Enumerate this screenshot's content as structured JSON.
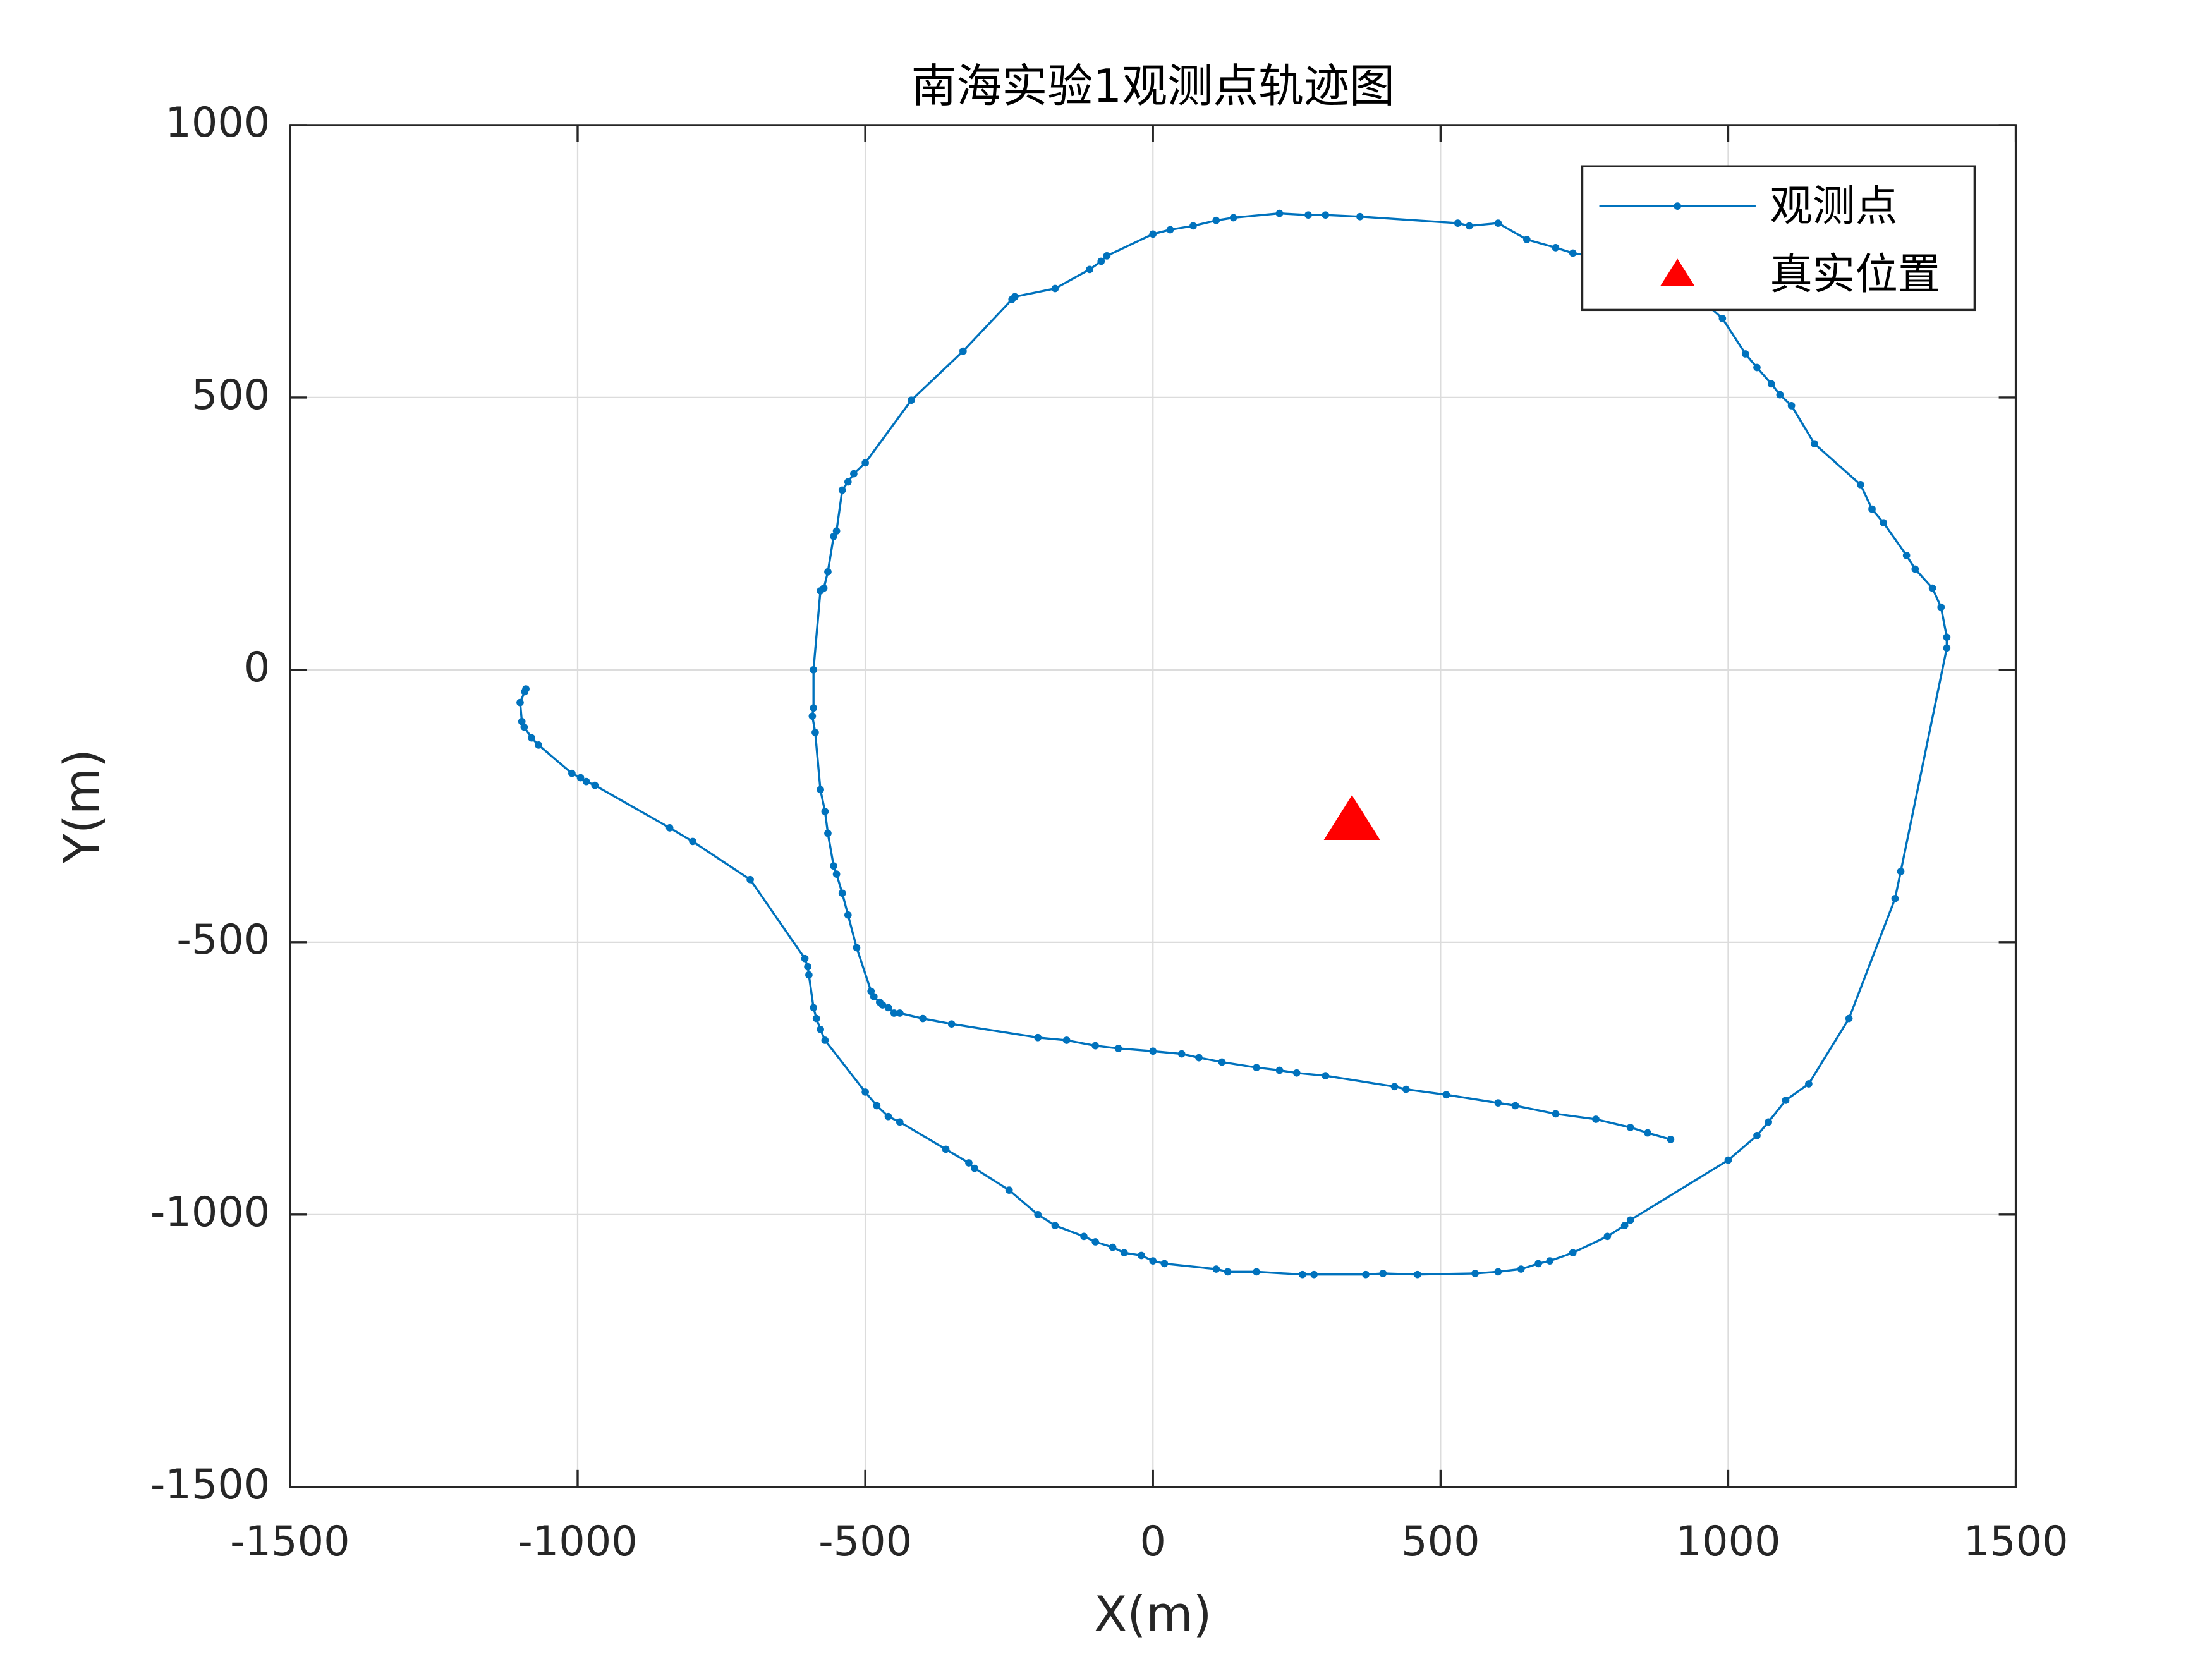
{
  "chart_data": {
    "type": "line",
    "title": "南海实验1观测点轨迹图",
    "x_label": "X(m)",
    "y_label": "Y(m)",
    "xlim": [
      -1500,
      1500
    ],
    "ylim": [
      -1500,
      1000
    ],
    "xticks": [
      -1500,
      -1000,
      -500,
      0,
      500,
      1000,
      1500
    ],
    "yticks": [
      -1500,
      -1000,
      -500,
      0,
      500,
      1000
    ],
    "grid": true,
    "legend": "northeast",
    "series": [
      {
        "name": "观测点",
        "color": "#0072bd",
        "marker": "dot",
        "x": [
          -1090,
          -1092,
          -1100,
          -1097,
          -1093,
          -1080,
          -1068,
          -1010,
          -995,
          -985,
          -970,
          -840,
          -800,
          -700,
          -605,
          -600,
          -598,
          -590,
          -585,
          -578,
          -570,
          -500,
          -480,
          -460,
          -440,
          -360,
          -320,
          -310,
          -250,
          -200,
          -170,
          -120,
          -100,
          -70,
          -50,
          -20,
          0,
          20,
          110,
          130,
          180,
          260,
          280,
          370,
          400,
          460,
          560,
          600,
          640,
          670,
          690,
          730,
          790,
          820,
          830,
          1000,
          1050,
          1070,
          1100,
          1140,
          1210,
          1290,
          1300,
          1380,
          1380,
          1370,
          1355,
          1325,
          1310,
          1270,
          1250,
          1230,
          1150,
          1110,
          1090,
          1075,
          1050,
          1030,
          990,
          900,
          850,
          730,
          700,
          650,
          600,
          550,
          530,
          360,
          300,
          270,
          220,
          140,
          110,
          70,
          30,
          0,
          -80,
          -90,
          -110,
          -170,
          -240,
          -245,
          -330,
          -420,
          -500,
          -520,
          -530,
          -540,
          -550,
          -555,
          -565,
          -572,
          -578,
          -590,
          -590,
          -592,
          -587,
          -578,
          -570,
          -565,
          -555,
          -550,
          -540,
          -530,
          -515,
          -490,
          -485,
          -475,
          -470,
          -460,
          -450,
          -440,
          -400,
          -350,
          -200,
          -150,
          -100,
          -60,
          0,
          50,
          80,
          120,
          180,
          220,
          250,
          300,
          420,
          440,
          510,
          600,
          630,
          700,
          770,
          830,
          860,
          900
        ],
        "y": [
          -35,
          -40,
          -60,
          -95,
          -105,
          -125,
          -138,
          -190,
          -198,
          -205,
          -212,
          -290,
          -315,
          -385,
          -530,
          -545,
          -560,
          -620,
          -640,
          -660,
          -680,
          -775,
          -800,
          -820,
          -830,
          -880,
          -905,
          -915,
          -955,
          -1000,
          -1020,
          -1040,
          -1050,
          -1060,
          -1070,
          -1075,
          -1085,
          -1090,
          -1100,
          -1105,
          -1105,
          -1110,
          -1110,
          -1110,
          -1108,
          -1110,
          -1108,
          -1105,
          -1100,
          -1090,
          -1085,
          -1070,
          -1040,
          -1020,
          -1010,
          -900,
          -855,
          -830,
          -790,
          -760,
          -640,
          -420,
          -370,
          40,
          60,
          115,
          150,
          185,
          210,
          270,
          295,
          340,
          415,
          485,
          505,
          525,
          555,
          580,
          645,
          730,
          745,
          765,
          775,
          790,
          820,
          815,
          820,
          832,
          835,
          835,
          838,
          830,
          825,
          815,
          808,
          800,
          760,
          750,
          735,
          700,
          685,
          680,
          585,
          495,
          380,
          360,
          345,
          330,
          255,
          245,
          180,
          150,
          145,
          0,
          -70,
          -85,
          -115,
          -220,
          -260,
          -300,
          -360,
          -375,
          -410,
          -450,
          -510,
          -590,
          -600,
          -610,
          -615,
          -620,
          -630,
          -630,
          -640,
          -650,
          -675,
          -680,
          -690,
          -695,
          -700,
          -705,
          -712,
          -720,
          -730,
          -735,
          -740,
          -745,
          -765,
          -770,
          -780,
          -795,
          -800,
          -815,
          -825,
          -840,
          -850,
          -862
        ]
      },
      {
        "name": "真实位置",
        "color": "#ff0000",
        "marker": "triangle",
        "x": [
          346
        ],
        "y": [
          -277
        ]
      }
    ]
  }
}
